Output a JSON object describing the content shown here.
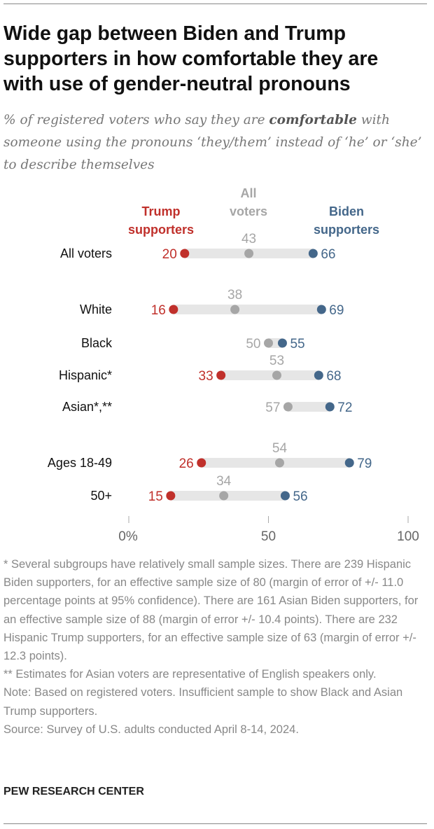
{
  "title": "Wide gap between Biden and Trump supporters in how comfortable they are with use of gender-neutral pronouns",
  "subtitle": {
    "before": "% of registered voters who say they are ",
    "bold": "comfortable",
    "after": " with someone using the pronouns ‘they/them’ instead of ‘he’ or ‘she’ to describe themselves"
  },
  "chart_data": {
    "type": "dot",
    "xlim": [
      0,
      100
    ],
    "ticks": [
      "0%",
      "50",
      "100"
    ],
    "tick_values": [
      0,
      50,
      100
    ],
    "grid": false,
    "series": [
      {
        "name": "Trump supporters",
        "color": "#c0302b"
      },
      {
        "name": "All voters",
        "color": "#a6a6a6"
      },
      {
        "name": "Biden supporters",
        "color": "#44678a"
      }
    ],
    "rows": [
      {
        "label": "All voters",
        "trump": 20,
        "all": 43,
        "biden": 66
      },
      {
        "label": "White",
        "trump": 16,
        "all": 38,
        "biden": 69
      },
      {
        "label": "Black",
        "trump": null,
        "all": 50,
        "biden": 55
      },
      {
        "label": "Hispanic*",
        "trump": 33,
        "all": 53,
        "biden": 68
      },
      {
        "label": "Asian*,**",
        "trump": null,
        "all": 57,
        "biden": 72
      },
      {
        "label": "Ages 18-49",
        "trump": 26,
        "all": 54,
        "biden": 79
      },
      {
        "label": "50+",
        "trump": 15,
        "all": 34,
        "biden": 56
      }
    ],
    "legend": {
      "trump": [
        "Trump",
        "supporters"
      ],
      "all": [
        "All",
        "voters"
      ],
      "biden": [
        "Biden",
        "supporters"
      ]
    }
  },
  "notes": [
    "* Several subgroups have relatively small sample sizes. There are 239 Hispanic Biden supporters, for an effective sample size of 80 (margin of error of +/- 11.0 percentage points at 95% confidence). There are 161 Asian Biden supporters, for an effective sample size of 88 (margin of error +/- 10.4 points). There are 232 Hispanic Trump supporters, for an effective sample size of 63 (margin of error +/- 12.3 points).",
    "** Estimates for Asian voters are representative of English speakers only.",
    "Note: Based on registered voters. Insufficient sample to show Black and Asian Trump supporters.",
    "Source: Survey of U.S. adults conducted April 8-14, 2024."
  ],
  "brand": "PEW RESEARCH CENTER"
}
